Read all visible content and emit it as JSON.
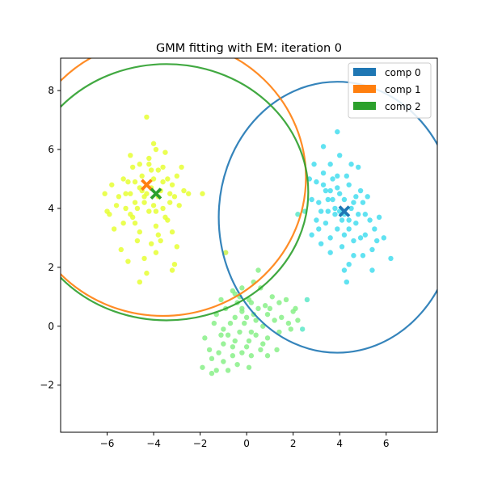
{
  "chart_data": {
    "type": "scatter",
    "title": "GMM fitting with EM: iteration 0",
    "xlabel": "",
    "ylabel": "",
    "xlim": [
      -8.0,
      8.2
    ],
    "ylim": [
      -3.6,
      9.1
    ],
    "xticks": [
      -6,
      -4,
      -2,
      0,
      2,
      4,
      6
    ],
    "yticks": [
      -2,
      0,
      2,
      4,
      6,
      8
    ],
    "xtick_labels": [
      "−6",
      "−4",
      "−2",
      "0",
      "2",
      "4",
      "6"
    ],
    "ytick_labels": [
      "−2",
      "0",
      "2",
      "4",
      "6",
      "8"
    ],
    "grid": false,
    "legend_position": "top-right",
    "legend": [
      {
        "label": "comp 0",
        "color": "#1f77b4"
      },
      {
        "label": "comp 1",
        "color": "#ff7f0e"
      },
      {
        "label": "comp 2",
        "color": "#2ca02c"
      }
    ],
    "components": [
      {
        "name": "comp 0",
        "color": "#1f77b4",
        "center": [
          4.2,
          3.9
        ],
        "ellipse_center": [
          3.9,
          3.7
        ],
        "ellipse_radii": [
          5.1,
          4.6
        ]
      },
      {
        "name": "comp 1",
        "color": "#ff7f0e",
        "center": [
          -4.3,
          4.8
        ],
        "ellipse_center": [
          -3.6,
          5.05
        ],
        "ellipse_radii": [
          6.15,
          4.7
        ]
      },
      {
        "name": "comp 2",
        "color": "#2ca02c",
        "center": [
          -3.9,
          4.5
        ],
        "ellipse_center": [
          -3.45,
          4.55
        ],
        "ellipse_radii": [
          6.1,
          4.35
        ]
      }
    ],
    "clusters": [
      {
        "color": "#e6ff33",
        "points": [
          [
            -5.2,
            4.5
          ],
          [
            -4.8,
            4.9
          ],
          [
            -4.6,
            3.2
          ],
          [
            -4.1,
            4.7
          ],
          [
            -3.8,
            5.3
          ],
          [
            -4.4,
            4.2
          ],
          [
            -5.0,
            3.8
          ],
          [
            -3.6,
            4.0
          ],
          [
            -4.9,
            5.4
          ],
          [
            -4.2,
            5.7
          ],
          [
            -3.5,
            5.9
          ],
          [
            -4.0,
            6.2
          ],
          [
            -4.3,
            7.1
          ],
          [
            -3.3,
            4.5
          ],
          [
            -3.0,
            5.1
          ],
          [
            -3.4,
            3.6
          ],
          [
            -3.9,
            3.4
          ],
          [
            -4.7,
            2.9
          ],
          [
            -5.4,
            2.6
          ],
          [
            -5.3,
            3.5
          ],
          [
            -5.6,
            4.1
          ],
          [
            -5.8,
            4.8
          ],
          [
            -6.1,
            4.5
          ],
          [
            -6.0,
            3.9
          ],
          [
            -5.0,
            5.8
          ],
          [
            -4.6,
            5.5
          ],
          [
            -3.8,
            4.4
          ],
          [
            -3.6,
            4.9
          ],
          [
            -4.2,
            3.9
          ],
          [
            -4.8,
            4.2
          ],
          [
            -5.2,
            4.0
          ],
          [
            -4.5,
            4.6
          ],
          [
            -4.0,
            5.0
          ],
          [
            -3.2,
            3.2
          ],
          [
            -3.0,
            2.7
          ],
          [
            -3.7,
            2.9
          ],
          [
            -3.9,
            2.5
          ],
          [
            -4.4,
            2.3
          ],
          [
            -2.9,
            4.1
          ],
          [
            -2.7,
            4.6
          ],
          [
            -3.2,
            4.8
          ],
          [
            -5.7,
            3.3
          ],
          [
            -5.1,
            2.2
          ],
          [
            -4.3,
            1.8
          ],
          [
            -3.1,
            2.1
          ],
          [
            -2.5,
            4.5
          ],
          [
            -3.6,
            5.4
          ],
          [
            -4.1,
            5.3
          ],
          [
            -5.3,
            5.0
          ],
          [
            -4.7,
            4.0
          ],
          [
            -4.4,
            4.4
          ],
          [
            -3.9,
            3.9
          ],
          [
            -4.6,
            4.7
          ],
          [
            -5.0,
            4.5
          ],
          [
            -4.9,
            3.7
          ],
          [
            -3.5,
            3.7
          ],
          [
            -3.3,
            4.2
          ],
          [
            -3.9,
            6.0
          ],
          [
            -4.5,
            5.1
          ],
          [
            -5.5,
            4.4
          ],
          [
            -4.6,
            1.5
          ],
          [
            -3.2,
            1.9
          ],
          [
            -2.8,
            5.4
          ],
          [
            -4.1,
            2.8
          ],
          [
            -5.9,
            3.8
          ],
          [
            -4.8,
            3.5
          ],
          [
            -3.7,
            4.6
          ],
          [
            -4.3,
            4.5
          ],
          [
            -3.4,
            5.0
          ],
          [
            -3.8,
            3.1
          ],
          [
            -4.0,
            4.1
          ],
          [
            -5.1,
            4.9
          ],
          [
            -4.2,
            5.5
          ],
          [
            -3.1,
            4.4
          ]
        ]
      },
      {
        "color": "#44ddee",
        "points": [
          [
            3.3,
            4.8
          ],
          [
            3.7,
            4.3
          ],
          [
            4.0,
            4.5
          ],
          [
            3.5,
            3.9
          ],
          [
            4.5,
            4.0
          ],
          [
            4.7,
            3.5
          ],
          [
            5.0,
            4.2
          ],
          [
            4.2,
            3.8
          ],
          [
            3.9,
            3.3
          ],
          [
            3.4,
            3.5
          ],
          [
            3.1,
            4.2
          ],
          [
            3.0,
            3.6
          ],
          [
            2.8,
            3.1
          ],
          [
            3.2,
            2.8
          ],
          [
            3.6,
            2.5
          ],
          [
            4.1,
            2.7
          ],
          [
            4.6,
            2.9
          ],
          [
            5.1,
            3.1
          ],
          [
            5.4,
            2.6
          ],
          [
            5.0,
            2.4
          ],
          [
            4.4,
            2.1
          ],
          [
            4.2,
            1.9
          ],
          [
            4.3,
            1.5
          ],
          [
            5.4,
            1.9
          ],
          [
            6.2,
            2.3
          ],
          [
            5.6,
            2.9
          ],
          [
            5.9,
            3.0
          ],
          [
            5.3,
            3.6
          ],
          [
            5.7,
            3.7
          ],
          [
            4.9,
            4.6
          ],
          [
            4.4,
            4.8
          ],
          [
            3.9,
            5.1
          ],
          [
            3.6,
            5.5
          ],
          [
            4.0,
            5.8
          ],
          [
            3.3,
            6.1
          ],
          [
            3.9,
            6.6
          ],
          [
            4.5,
            5.5
          ],
          [
            4.8,
            5.4
          ],
          [
            3.6,
            4.6
          ],
          [
            3.8,
            3.8
          ],
          [
            4.2,
            4.3
          ],
          [
            4.8,
            3.8
          ],
          [
            3.0,
            4.9
          ],
          [
            2.7,
            5.0
          ],
          [
            3.3,
            5.2
          ],
          [
            2.9,
            5.5
          ],
          [
            3.5,
            4.3
          ],
          [
            3.8,
            4.0
          ],
          [
            4.1,
            3.6
          ],
          [
            4.4,
            3.3
          ],
          [
            4.9,
            3.0
          ],
          [
            2.8,
            4.3
          ],
          [
            3.6,
            3.0
          ],
          [
            5.2,
            4.4
          ],
          [
            4.6,
            4.2
          ],
          [
            4.0,
            3.9
          ],
          [
            3.4,
            4.6
          ],
          [
            3.7,
            5.0
          ],
          [
            4.3,
            5.1
          ],
          [
            4.7,
            4.4
          ],
          [
            5.1,
            3.8
          ],
          [
            4.2,
            3.1
          ],
          [
            3.2,
            3.9
          ],
          [
            3.9,
            4.7
          ],
          [
            4.4,
            3.6
          ],
          [
            3.1,
            3.3
          ],
          [
            5.5,
            3.3
          ],
          [
            4.6,
            2.4
          ]
        ]
      },
      {
        "color": "#88f088",
        "points": [
          [
            -0.5,
            1.1
          ],
          [
            -0.2,
            0.5
          ],
          [
            0.0,
            0.3
          ],
          [
            0.2,
            0.8
          ],
          [
            0.5,
            0.6
          ],
          [
            0.9,
            0.4
          ],
          [
            1.2,
            0.2
          ],
          [
            0.7,
            0.0
          ],
          [
            0.4,
            -0.3
          ],
          [
            0.1,
            -0.5
          ],
          [
            -0.3,
            -0.2
          ],
          [
            -0.7,
            0.1
          ],
          [
            -1.0,
            -0.1
          ],
          [
            -1.3,
            0.4
          ],
          [
            -0.9,
            0.6
          ],
          [
            -0.4,
            0.8
          ],
          [
            -0.6,
            1.2
          ],
          [
            -0.2,
            1.3
          ],
          [
            0.3,
            1.5
          ],
          [
            0.6,
            1.3
          ],
          [
            1.4,
            0.8
          ],
          [
            1.7,
            0.9
          ],
          [
            2.0,
            0.5
          ],
          [
            2.2,
            0.2
          ],
          [
            1.8,
            0.1
          ],
          [
            1.4,
            -0.2
          ],
          [
            0.9,
            -0.4
          ],
          [
            0.6,
            -0.8
          ],
          [
            0.2,
            -1.0
          ],
          [
            -0.2,
            -0.9
          ],
          [
            -0.6,
            -0.7
          ],
          [
            -1.0,
            -0.6
          ],
          [
            -1.2,
            -0.9
          ],
          [
            -1.6,
            -0.8
          ],
          [
            -1.5,
            -1.1
          ],
          [
            -1.3,
            -1.5
          ],
          [
            -1.0,
            -1.2
          ],
          [
            -0.4,
            -1.3
          ],
          [
            0.1,
            -1.4
          ],
          [
            0.9,
            -1.0
          ],
          [
            1.3,
            -0.8
          ],
          [
            -0.8,
            -1.5
          ],
          [
            -1.5,
            -1.6
          ],
          [
            -1.9,
            -1.4
          ],
          [
            -1.4,
            0.1
          ],
          [
            -0.1,
            0.1
          ],
          [
            0.4,
            0.2
          ],
          [
            -0.5,
            0.3
          ],
          [
            0.8,
            0.7
          ],
          [
            1.1,
            1.0
          ],
          [
            -1.1,
            0.9
          ],
          [
            -0.3,
            1.0
          ],
          [
            0.2,
            -0.2
          ],
          [
            -0.8,
            -0.3
          ],
          [
            1.5,
            0.3
          ],
          [
            0.5,
            1.9
          ],
          [
            -1.8,
            -0.4
          ],
          [
            1.9,
            -0.1
          ],
          [
            0.0,
            -0.7
          ],
          [
            -0.5,
            -0.5
          ],
          [
            0.3,
            0.4
          ],
          [
            -0.2,
            0.6
          ],
          [
            0.7,
            -0.6
          ],
          [
            -1.1,
            -0.3
          ],
          [
            1.0,
            0.6
          ],
          [
            -0.6,
            -1.0
          ],
          [
            0.1,
            0.9
          ],
          [
            2.1,
            0.6
          ]
        ]
      }
    ],
    "stray_points": [
      {
        "color": "#e6ff33",
        "x": -1.9,
        "y": 4.5
      },
      {
        "color": "#c8f04a",
        "x": -0.9,
        "y": 2.5
      },
      {
        "color": "#5ce8c8",
        "x": 2.4,
        "y": -0.1
      },
      {
        "color": "#5ce8c8",
        "x": 2.6,
        "y": 0.9
      },
      {
        "color": "#5ce8c8",
        "x": 2.5,
        "y": 3.9
      },
      {
        "color": "#5ce8c8",
        "x": 2.2,
        "y": 3.8
      }
    ]
  }
}
